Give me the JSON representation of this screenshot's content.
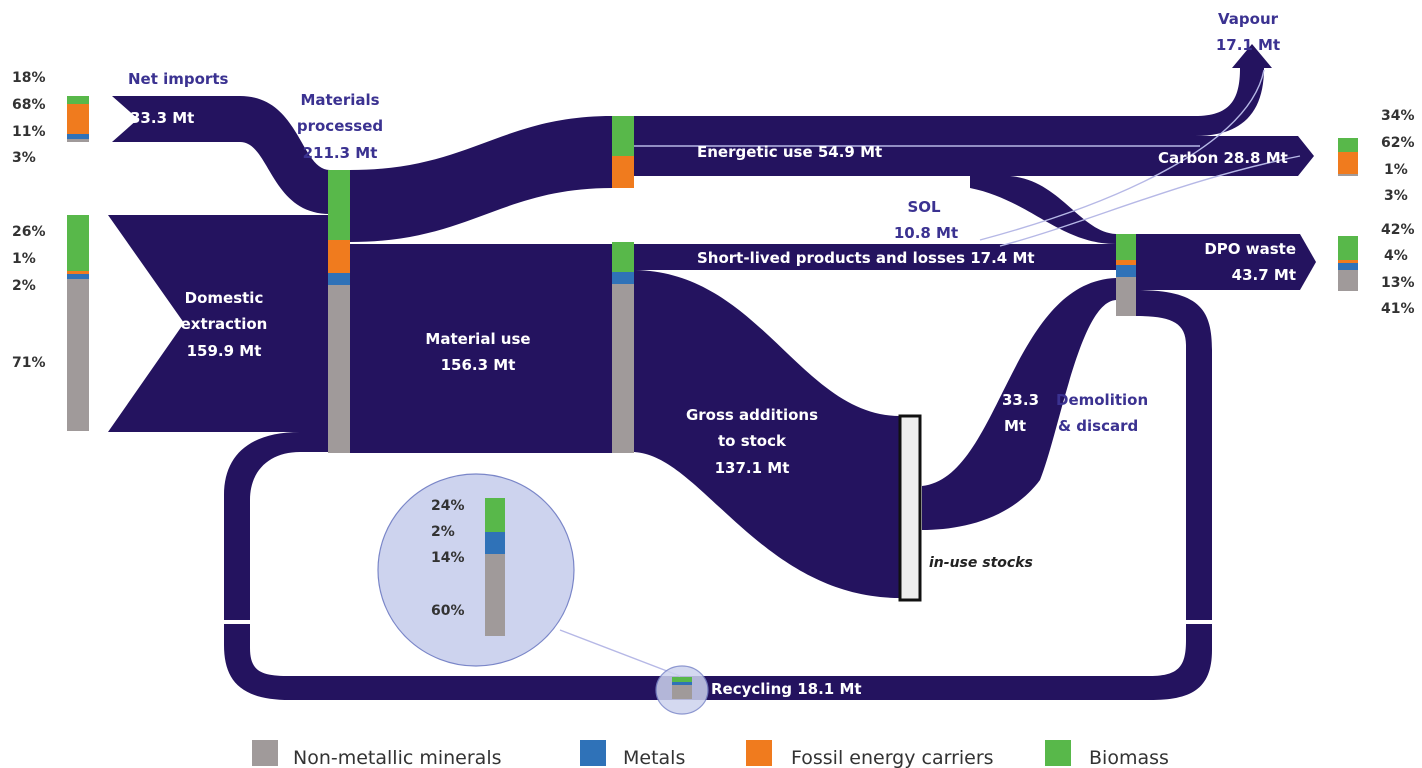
{
  "colors": {
    "flow": "#24135f",
    "label_dark": "#3b3291",
    "non_metallic_minerals": "#a09a9a",
    "metals": "#2f72b8",
    "fossil_energy_carriers": "#f07b1e",
    "biomass": "#58b84a",
    "zoom_circle": "#cdd3ee"
  },
  "labels": {
    "net_imports": "Net imports",
    "net_imports_value": "33.3 Mt",
    "materials_processed_1": "Materials",
    "materials_processed_2": "processed",
    "materials_processed_value": "211.3 Mt",
    "domestic_extraction_1": "Domestic",
    "domestic_extraction_2": "extraction",
    "domestic_extraction_value": "159.9 Mt",
    "material_use": "Material use",
    "material_use_value": "156.3 Mt",
    "energetic_use": "Energetic use 54.9 Mt",
    "vapour": "Vapour",
    "vapour_value": "17.1 Mt",
    "carbon": "Carbon 28.8 Mt",
    "sol": "SOL",
    "sol_value": "10.8 Mt",
    "short_lived": "Short-lived products and losses 17.4 Mt",
    "dpo_waste": "DPO waste",
    "dpo_waste_value": "43.7 Mt",
    "gross_additions_1": "Gross additions",
    "gross_additions_2": "to stock",
    "gross_additions_value": "137.1 Mt",
    "demolition_value_1": "33.3",
    "demolition_value_2": "Mt",
    "demolition_1": "Demolition",
    "demolition_2": "& discard",
    "in_use_stocks": "in-use stocks",
    "recycling": "Recycling 18.1 Mt"
  },
  "percentages": {
    "net_imports": [
      "18%",
      "68%",
      "11%",
      "3%"
    ],
    "domestic_extraction": [
      "26%",
      "1%",
      "2%",
      "71%"
    ],
    "carbon": [
      "34%",
      "62%",
      "1%",
      "3%"
    ],
    "dpo_waste": [
      "42%",
      "4%",
      "13%",
      "41%"
    ],
    "recycling": [
      "24%",
      "2%",
      "14%",
      "60%"
    ]
  },
  "legend": {
    "non_metallic_minerals": "Non-metallic minerals",
    "metals": "Metals",
    "fossil_energy_carriers": "Fossil energy carriers",
    "biomass": "Biomass"
  }
}
